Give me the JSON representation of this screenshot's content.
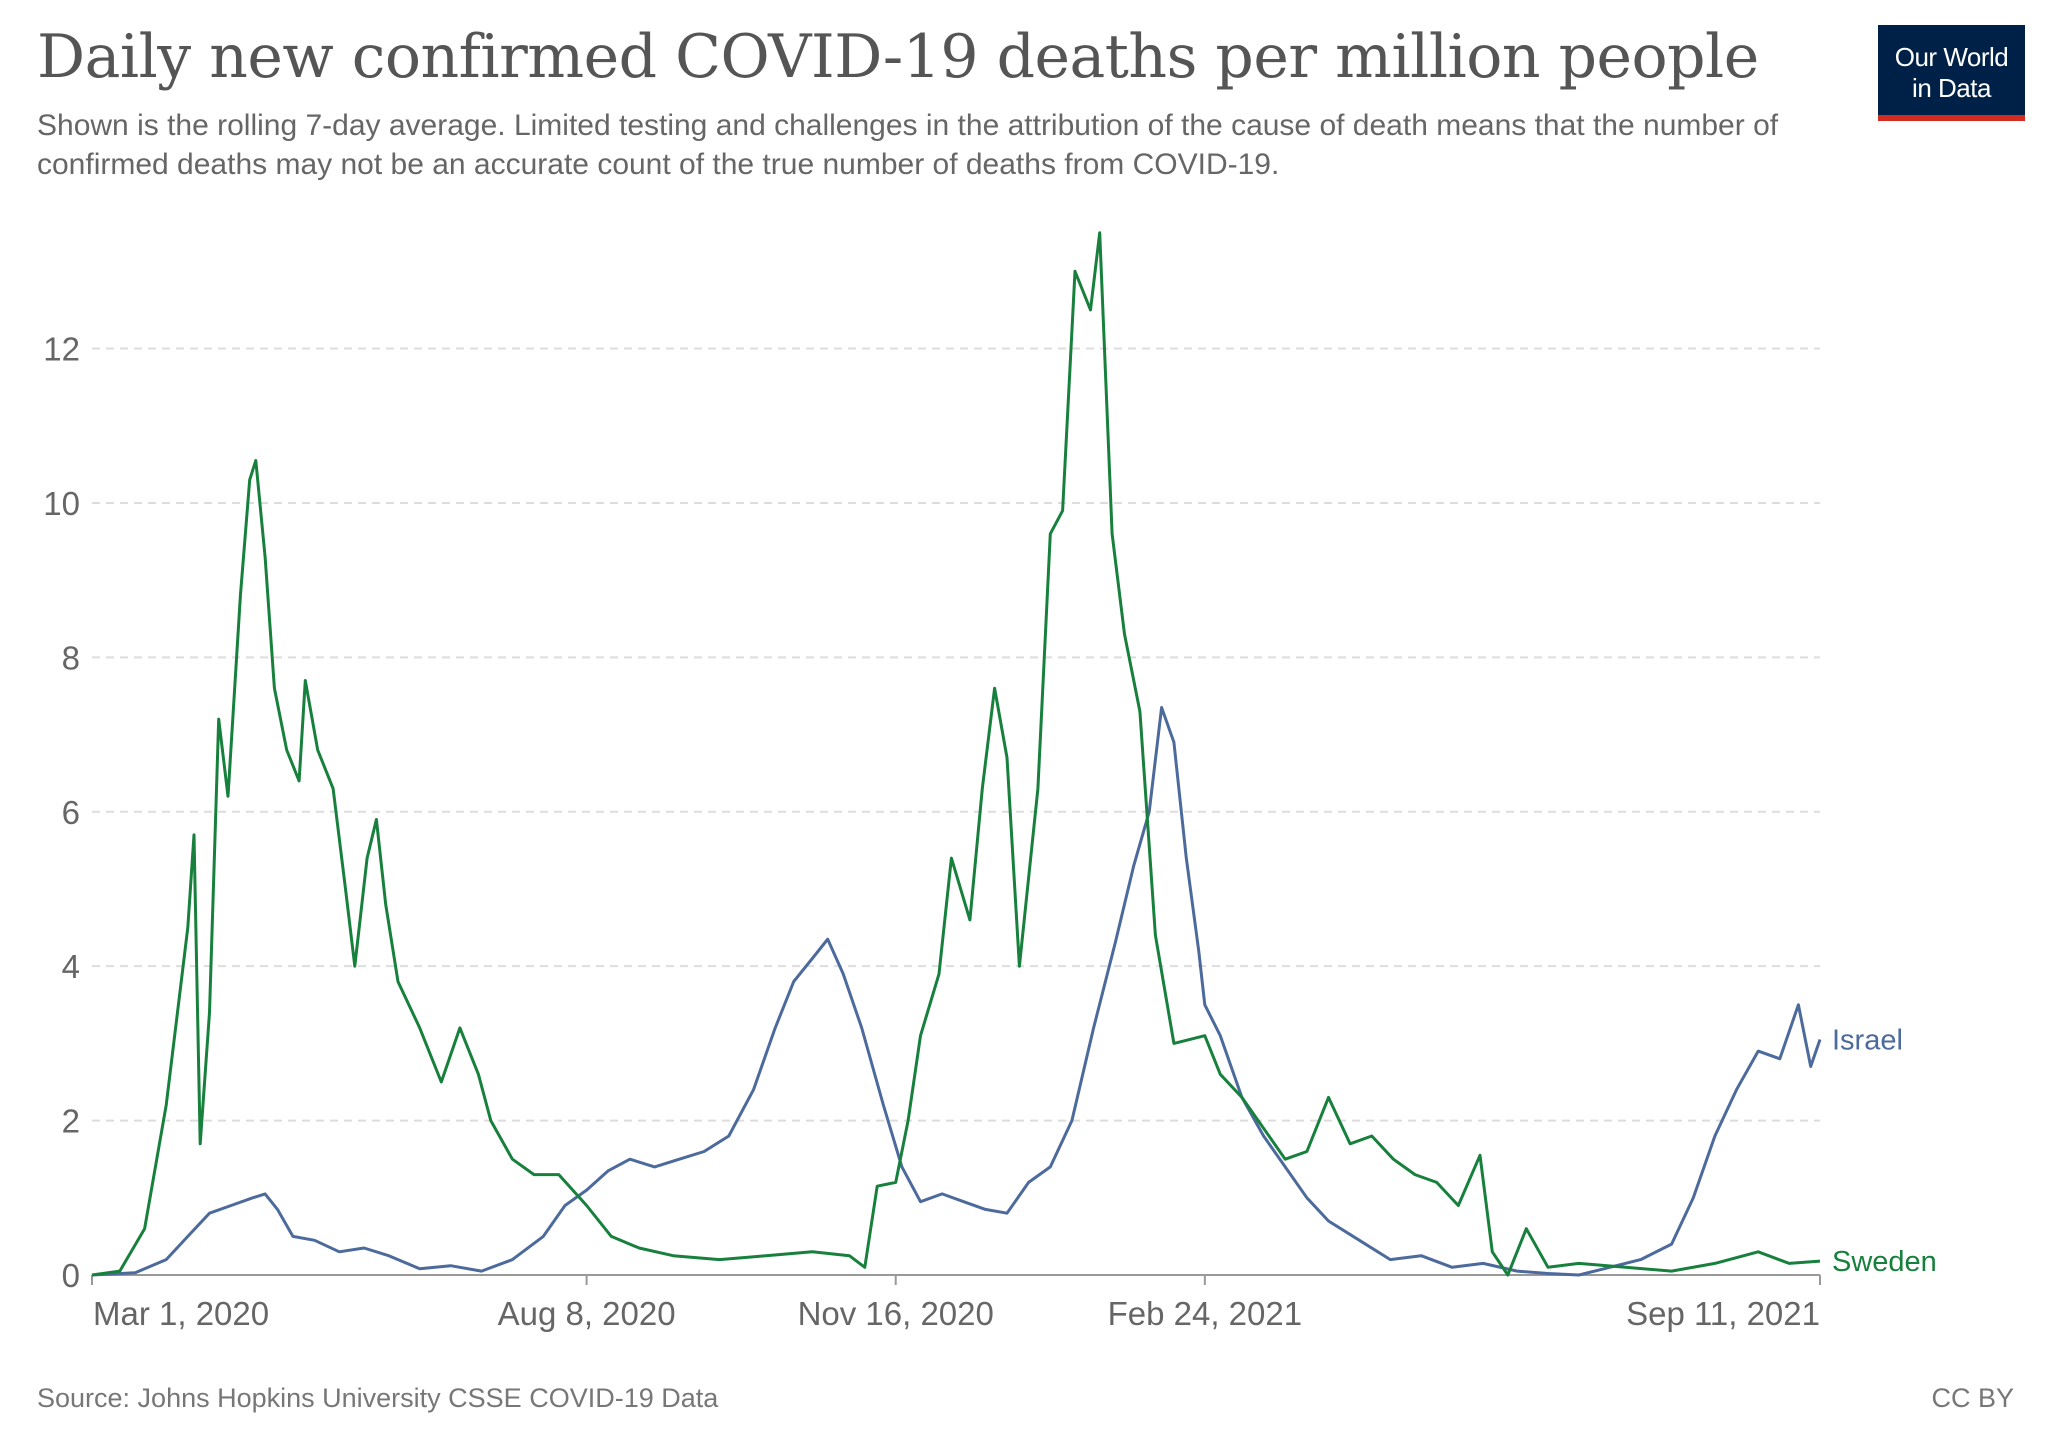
{
  "header": {
    "title": "Daily new confirmed COVID-19 deaths per million people",
    "subtitle": "Shown is the rolling 7-day average. Limited testing and challenges in the attribution of the cause of death means that the number of confirmed deaths may not be an accurate count of the true number of deaths from COVID-19."
  },
  "logo": {
    "line1": "Our World",
    "line2": "in Data",
    "bg_color": "#002147",
    "accent_color": "#d42b21"
  },
  "footer": {
    "source": "Source: Johns Hopkins University CSSE COVID-19 Data",
    "license": "CC BY"
  },
  "chart_data": {
    "type": "line",
    "title": "Daily new confirmed COVID-19 deaths per million people",
    "xlabel": "",
    "ylabel": "",
    "x_range": [
      "2020-03-01",
      "2021-09-11"
    ],
    "ylim": [
      0,
      13.6
    ],
    "y_ticks": [
      0,
      2,
      4,
      6,
      8,
      10,
      12
    ],
    "x_ticks": [
      {
        "date": "2020-03-01",
        "label": "Mar 1, 2020"
      },
      {
        "date": "2020-08-08",
        "label": "Aug 8, 2020"
      },
      {
        "date": "2020-11-16",
        "label": "Nov 16, 2020"
      },
      {
        "date": "2021-02-24",
        "label": "Feb 24, 2021"
      },
      {
        "date": "2021-09-11",
        "label": "Sep 11, 2021"
      }
    ],
    "grid": "horizontal dashed",
    "legend": "line-end labels",
    "series": [
      {
        "name": "Israel",
        "color": "#4c6a9c",
        "points": [
          [
            "2020-03-01",
            0
          ],
          [
            "2020-03-15",
            0.03
          ],
          [
            "2020-03-25",
            0.2
          ],
          [
            "2020-04-01",
            0.5
          ],
          [
            "2020-04-08",
            0.8
          ],
          [
            "2020-04-15",
            0.9
          ],
          [
            "2020-04-22",
            1.0
          ],
          [
            "2020-04-26",
            1.05
          ],
          [
            "2020-04-30",
            0.85
          ],
          [
            "2020-05-05",
            0.5
          ],
          [
            "2020-05-12",
            0.45
          ],
          [
            "2020-05-20",
            0.3
          ],
          [
            "2020-05-28",
            0.35
          ],
          [
            "2020-06-05",
            0.25
          ],
          [
            "2020-06-15",
            0.08
          ],
          [
            "2020-06-25",
            0.12
          ],
          [
            "2020-07-05",
            0.05
          ],
          [
            "2020-07-15",
            0.2
          ],
          [
            "2020-07-25",
            0.5
          ],
          [
            "2020-08-01",
            0.9
          ],
          [
            "2020-08-08",
            1.1
          ],
          [
            "2020-08-15",
            1.35
          ],
          [
            "2020-08-22",
            1.5
          ],
          [
            "2020-08-30",
            1.4
          ],
          [
            "2020-09-07",
            1.5
          ],
          [
            "2020-09-15",
            1.6
          ],
          [
            "2020-09-23",
            1.8
          ],
          [
            "2020-10-01",
            2.4
          ],
          [
            "2020-10-08",
            3.2
          ],
          [
            "2020-10-14",
            3.8
          ],
          [
            "2020-10-20",
            4.1
          ],
          [
            "2020-10-25",
            4.35
          ],
          [
            "2020-10-30",
            3.9
          ],
          [
            "2020-11-05",
            3.2
          ],
          [
            "2020-11-12",
            2.2
          ],
          [
            "2020-11-18",
            1.4
          ],
          [
            "2020-11-24",
            0.95
          ],
          [
            "2020-12-01",
            1.05
          ],
          [
            "2020-12-08",
            0.95
          ],
          [
            "2020-12-15",
            0.85
          ],
          [
            "2020-12-22",
            0.8
          ],
          [
            "2020-12-29",
            1.2
          ],
          [
            "2021-01-05",
            1.4
          ],
          [
            "2021-01-12",
            2.0
          ],
          [
            "2021-01-19",
            3.2
          ],
          [
            "2021-01-26",
            4.3
          ],
          [
            "2021-02-01",
            5.3
          ],
          [
            "2021-02-06",
            6.0
          ],
          [
            "2021-02-10",
            7.35
          ],
          [
            "2021-02-14",
            6.9
          ],
          [
            "2021-02-18",
            5.4
          ],
          [
            "2021-02-22",
            4.2
          ],
          [
            "2021-02-24",
            3.5
          ],
          [
            "2021-03-01",
            3.1
          ],
          [
            "2021-03-08",
            2.3
          ],
          [
            "2021-03-15",
            1.8
          ],
          [
            "2021-03-22",
            1.4
          ],
          [
            "2021-03-29",
            1.0
          ],
          [
            "2021-04-05",
            0.7
          ],
          [
            "2021-04-15",
            0.45
          ],
          [
            "2021-04-25",
            0.2
          ],
          [
            "2021-05-05",
            0.25
          ],
          [
            "2021-05-15",
            0.1
          ],
          [
            "2021-05-25",
            0.15
          ],
          [
            "2021-06-05",
            0.05
          ],
          [
            "2021-06-15",
            0.02
          ],
          [
            "2021-06-25",
            0.0
          ],
          [
            "2021-07-05",
            0.1
          ],
          [
            "2021-07-15",
            0.2
          ],
          [
            "2021-07-25",
            0.4
          ],
          [
            "2021-08-01",
            1.0
          ],
          [
            "2021-08-08",
            1.8
          ],
          [
            "2021-08-15",
            2.4
          ],
          [
            "2021-08-22",
            2.9
          ],
          [
            "2021-08-29",
            2.8
          ],
          [
            "2021-09-04",
            3.5
          ],
          [
            "2021-09-08",
            2.7
          ],
          [
            "2021-09-11",
            3.05
          ]
        ]
      },
      {
        "name": "Sweden",
        "color": "#18803d",
        "points": [
          [
            "2020-03-01",
            0
          ],
          [
            "2020-03-10",
            0.05
          ],
          [
            "2020-03-18",
            0.6
          ],
          [
            "2020-03-25",
            2.2
          ],
          [
            "2020-04-01",
            4.5
          ],
          [
            "2020-04-03",
            5.7
          ],
          [
            "2020-04-05",
            1.7
          ],
          [
            "2020-04-08",
            3.4
          ],
          [
            "2020-04-11",
            7.2
          ],
          [
            "2020-04-14",
            6.2
          ],
          [
            "2020-04-18",
            8.8
          ],
          [
            "2020-04-21",
            10.3
          ],
          [
            "2020-04-23",
            10.55
          ],
          [
            "2020-04-26",
            9.3
          ],
          [
            "2020-04-29",
            7.6
          ],
          [
            "2020-05-03",
            6.8
          ],
          [
            "2020-05-07",
            6.4
          ],
          [
            "2020-05-09",
            7.7
          ],
          [
            "2020-05-13",
            6.8
          ],
          [
            "2020-05-18",
            6.3
          ],
          [
            "2020-05-22",
            5.0
          ],
          [
            "2020-05-25",
            4.0
          ],
          [
            "2020-05-29",
            5.4
          ],
          [
            "2020-06-01",
            5.9
          ],
          [
            "2020-06-04",
            4.8
          ],
          [
            "2020-06-08",
            3.8
          ],
          [
            "2020-06-15",
            3.2
          ],
          [
            "2020-06-22",
            2.5
          ],
          [
            "2020-06-28",
            3.2
          ],
          [
            "2020-07-04",
            2.6
          ],
          [
            "2020-07-08",
            2.0
          ],
          [
            "2020-07-15",
            1.5
          ],
          [
            "2020-07-22",
            1.3
          ],
          [
            "2020-07-30",
            1.3
          ],
          [
            "2020-08-08",
            0.9
          ],
          [
            "2020-08-16",
            0.5
          ],
          [
            "2020-08-25",
            0.35
          ],
          [
            "2020-09-05",
            0.25
          ],
          [
            "2020-09-20",
            0.2
          ],
          [
            "2020-10-05",
            0.25
          ],
          [
            "2020-10-20",
            0.3
          ],
          [
            "2020-11-01",
            0.25
          ],
          [
            "2020-11-06",
            0.1
          ],
          [
            "2020-11-10",
            1.15
          ],
          [
            "2020-11-16",
            1.2
          ],
          [
            "2020-11-20",
            2.0
          ],
          [
            "2020-11-24",
            3.1
          ],
          [
            "2020-11-30",
            3.9
          ],
          [
            "2020-12-04",
            5.4
          ],
          [
            "2020-12-10",
            4.6
          ],
          [
            "2020-12-14",
            6.3
          ],
          [
            "2020-12-18",
            7.6
          ],
          [
            "2020-12-22",
            6.7
          ],
          [
            "2020-12-26",
            4.0
          ],
          [
            "2021-01-01",
            6.3
          ],
          [
            "2021-01-05",
            9.6
          ],
          [
            "2021-01-09",
            9.9
          ],
          [
            "2021-01-13",
            13.0
          ],
          [
            "2021-01-18",
            12.5
          ],
          [
            "2021-01-21",
            13.5
          ],
          [
            "2021-01-25",
            9.6
          ],
          [
            "2021-01-29",
            8.3
          ],
          [
            "2021-02-03",
            7.3
          ],
          [
            "2021-02-08",
            4.4
          ],
          [
            "2021-02-14",
            3.0
          ],
          [
            "2021-02-24",
            3.1
          ],
          [
            "2021-03-01",
            2.6
          ],
          [
            "2021-03-08",
            2.3
          ],
          [
            "2021-03-15",
            1.9
          ],
          [
            "2021-03-22",
            1.5
          ],
          [
            "2021-03-29",
            1.6
          ],
          [
            "2021-04-05",
            2.3
          ],
          [
            "2021-04-12",
            1.7
          ],
          [
            "2021-04-19",
            1.8
          ],
          [
            "2021-04-26",
            1.5
          ],
          [
            "2021-05-03",
            1.3
          ],
          [
            "2021-05-10",
            1.2
          ],
          [
            "2021-05-17",
            0.9
          ],
          [
            "2021-05-24",
            1.55
          ],
          [
            "2021-05-28",
            0.3
          ],
          [
            "2021-06-02",
            0.0
          ],
          [
            "2021-06-08",
            0.6
          ],
          [
            "2021-06-15",
            0.1
          ],
          [
            "2021-06-25",
            0.15
          ],
          [
            "2021-07-10",
            0.1
          ],
          [
            "2021-07-25",
            0.05
          ],
          [
            "2021-08-08",
            0.15
          ],
          [
            "2021-08-22",
            0.3
          ],
          [
            "2021-09-01",
            0.15
          ],
          [
            "2021-09-11",
            0.18
          ]
        ]
      }
    ]
  }
}
